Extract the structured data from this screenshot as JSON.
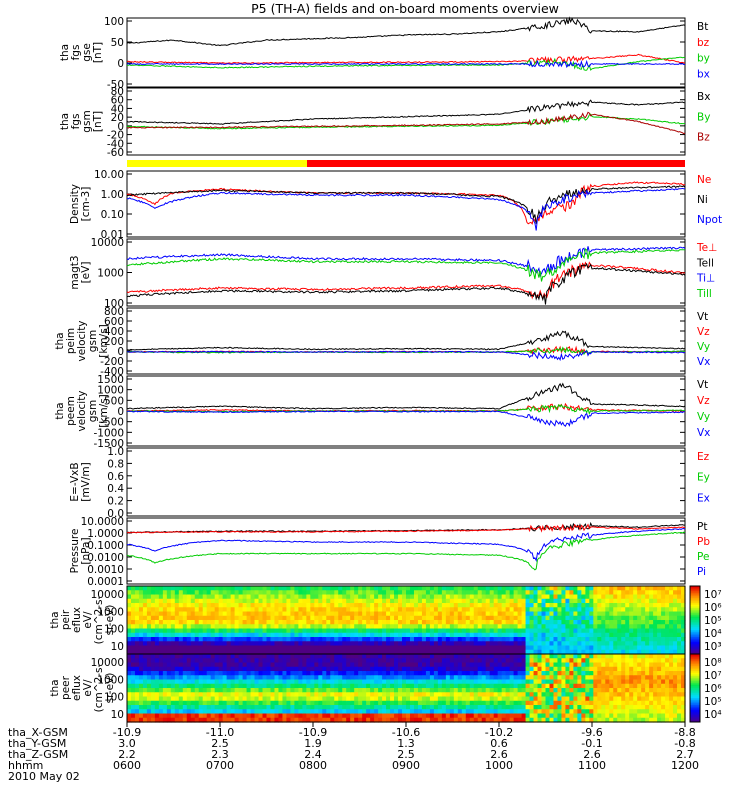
{
  "title": "P5 (TH-A) fields and on-board moments overview",
  "chart_data": [
    {
      "type": "line",
      "panel": "fgs_gse",
      "ylabel": [
        "tha",
        "fgs",
        "gse",
        "[nT]"
      ],
      "yticks": [
        "100",
        "50",
        "0",
        "-50"
      ],
      "ylim": [
        -50,
        100
      ],
      "series": [
        {
          "name": "Bt",
          "color": "#000000",
          "x": [
            6.0,
            6.5,
            7.0,
            7.5,
            8.0,
            8.5,
            9.0,
            9.5,
            10.0,
            10.4,
            10.8,
            11.0,
            11.5,
            12.0
          ],
          "y": [
            45,
            52,
            40,
            52,
            55,
            58,
            63,
            65,
            70,
            80,
            95,
            72,
            70,
            85
          ]
        },
        {
          "name": "bz",
          "color": "#ff0000",
          "x": [
            6.0,
            7.0,
            8.0,
            9.0,
            10.0,
            10.5,
            11.0,
            11.5,
            12.0
          ],
          "y": [
            5,
            2,
            3,
            4,
            5,
            8,
            12,
            20,
            2
          ]
        },
        {
          "name": "by",
          "color": "#00cc00",
          "x": [
            6.0,
            7.0,
            8.0,
            9.0,
            10.0,
            10.6,
            11.0,
            11.5,
            12.0
          ],
          "y": [
            -2,
            -8,
            -5,
            -3,
            -2,
            5,
            -10,
            5,
            15
          ]
        },
        {
          "name": "bx",
          "color": "#0000ff",
          "x": [
            6.0,
            12.0
          ],
          "y": [
            0,
            0
          ]
        }
      ]
    },
    {
      "type": "line",
      "panel": "fgs_gsm",
      "ylabel": [
        "tha",
        "fgs",
        "gsm",
        "[nT]"
      ],
      "yticks": [
        "80",
        "60",
        "40",
        "20",
        "0",
        "-20",
        "-40",
        "-60"
      ],
      "ylim": [
        -60,
        80
      ],
      "series": [
        {
          "name": "Bx",
          "color": "#000000",
          "x": [
            6.0,
            7.0,
            8.0,
            9.0,
            10.0,
            10.5,
            11.0,
            11.5,
            12.0
          ],
          "y": [
            10,
            5,
            15,
            20,
            25,
            40,
            50,
            45,
            50
          ]
        },
        {
          "name": "By",
          "color": "#00cc00",
          "x": [
            6.0,
            7.0,
            8.0,
            9.0,
            10.0,
            10.5,
            11.0,
            11.5,
            12.0
          ],
          "y": [
            0,
            -5,
            -2,
            0,
            2,
            10,
            20,
            15,
            5
          ]
        },
        {
          "name": "Bz",
          "color": "#aa0000",
          "x": [
            6.0,
            7.0,
            8.0,
            9.0,
            10.0,
            10.5,
            11.0,
            11.5,
            12.0
          ],
          "y": [
            -3,
            -2,
            0,
            2,
            5,
            10,
            25,
            10,
            -15
          ]
        }
      ]
    },
    {
      "type": "line",
      "panel": "density",
      "scale": "log",
      "ylabel": [
        "Density",
        "[cm-3]"
      ],
      "yticks": [
        "10.00",
        "1.00",
        "0.10",
        "0.01"
      ],
      "ylim": [
        0.01,
        10
      ],
      "series": [
        {
          "name": "Ne",
          "color": "#ff0000",
          "x": [
            6.0,
            6.3,
            6.5,
            7.0,
            7.5,
            8.0,
            9.0,
            10.0,
            10.3,
            10.5,
            10.8,
            11.0,
            11.5,
            12.0
          ],
          "y": [
            0.9,
            0.3,
            1.0,
            1.5,
            1.2,
            1.0,
            1.0,
            0.8,
            0.05,
            0.1,
            0.3,
            2.0,
            3.0,
            2.5
          ]
        },
        {
          "name": "Ni",
          "color": "#000000",
          "x": [
            6.0,
            7.0,
            8.0,
            9.0,
            10.0,
            10.4,
            11.0,
            12.0
          ],
          "y": [
            0.8,
            1.3,
            1.0,
            1.0,
            0.7,
            0.05,
            1.5,
            2.0
          ]
        },
        {
          "name": "Npot",
          "color": "#0000ff",
          "x": [
            6.0,
            6.3,
            7.0,
            8.0,
            9.0,
            10.0,
            10.4,
            11.0,
            12.0
          ],
          "y": [
            0.6,
            0.2,
            1.0,
            0.8,
            0.8,
            0.5,
            0.03,
            1.0,
            1.5
          ]
        }
      ]
    },
    {
      "type": "line",
      "panel": "temperature",
      "scale": "log",
      "ylabel": [
        "magt3",
        "[eV]"
      ],
      "yticks": [
        "10000",
        "1000",
        "100"
      ],
      "ylim": [
        60,
        12000
      ],
      "series": [
        {
          "name": "Te⊥",
          "color": "#ff0000",
          "x": [
            6.0,
            7.0,
            8.0,
            9.0,
            10.0,
            10.5,
            11.0,
            12.0
          ],
          "y": [
            180,
            250,
            220,
            250,
            300,
            130,
            1500,
            800
          ]
        },
        {
          "name": "Tell",
          "color": "#000000",
          "x": [
            6.0,
            7.0,
            8.0,
            9.0,
            10.0,
            10.5,
            11.0,
            12.0
          ],
          "y": [
            130,
            200,
            180,
            200,
            250,
            100,
            1200,
            700
          ]
        },
        {
          "name": "Ti⊥",
          "color": "#0000ff",
          "x": [
            6.0,
            7.0,
            8.0,
            9.0,
            10.0,
            10.5,
            11.0,
            12.0
          ],
          "y": [
            2500,
            3500,
            2500,
            2500,
            2200,
            800,
            5000,
            6000
          ]
        },
        {
          "name": "Till",
          "color": "#00cc00",
          "x": [
            6.0,
            7.0,
            8.0,
            9.0,
            10.0,
            10.5,
            11.0,
            12.0
          ],
          "y": [
            1500,
            2500,
            2000,
            2000,
            1800,
            500,
            4000,
            5000
          ]
        }
      ]
    },
    {
      "type": "line",
      "panel": "peim_velocity",
      "ylabel": [
        "tha",
        "peim",
        "velocity",
        "gsm",
        "[km/s]"
      ],
      "yticks": [
        "800",
        "600",
        "400",
        "200",
        "0",
        "-200",
        "-400"
      ],
      "ylim": [
        -400,
        800
      ],
      "series": [
        {
          "name": "Vt",
          "color": "#000000",
          "x": [
            6.0,
            7.0,
            8.0,
            9.0,
            10.0,
            10.4,
            10.7,
            11.0,
            12.0
          ],
          "y": [
            40,
            80,
            50,
            60,
            50,
            200,
            350,
            100,
            60
          ]
        },
        {
          "name": "Vz",
          "color": "#ff0000",
          "x": [
            6.0,
            7.0,
            8.0,
            9.0,
            10.0,
            10.7,
            11.0,
            12.0
          ],
          "y": [
            0,
            10,
            0,
            5,
            0,
            50,
            10,
            0
          ]
        },
        {
          "name": "Vy",
          "color": "#00cc00",
          "x": [
            6.0,
            7.0,
            8.0,
            9.0,
            10.0,
            10.7,
            11.0,
            12.0
          ],
          "y": [
            0,
            -10,
            0,
            -5,
            0,
            30,
            0,
            10
          ]
        },
        {
          "name": "Vx",
          "color": "#0000ff",
          "x": [
            6.0,
            7.0,
            8.0,
            9.0,
            10.0,
            10.7,
            11.0,
            12.0
          ],
          "y": [
            0,
            5,
            0,
            5,
            0,
            -100,
            0,
            -10
          ]
        }
      ]
    },
    {
      "type": "line",
      "panel": "peem_velocity",
      "ylabel": [
        "tha",
        "peem",
        "velocity",
        "gsm",
        "[km/s]"
      ],
      "yticks": [
        "1500",
        "1000",
        "500",
        "0",
        "-500",
        "-1000",
        "-1500"
      ],
      "ylim": [
        -1500,
        1500
      ],
      "series": [
        {
          "name": "Vt",
          "color": "#000000",
          "x": [
            6.0,
            7.0,
            8.0,
            9.0,
            10.0,
            10.4,
            10.7,
            11.0,
            12.0
          ],
          "y": [
            100,
            200,
            100,
            150,
            100,
            700,
            1100,
            300,
            200
          ]
        },
        {
          "name": "Vz",
          "color": "#ff0000",
          "x": [
            6.0,
            7.0,
            8.0,
            9.0,
            10.0,
            10.7,
            11.0,
            12.0
          ],
          "y": [
            0,
            50,
            0,
            20,
            0,
            200,
            50,
            0
          ]
        },
        {
          "name": "Vy",
          "color": "#00cc00",
          "x": [
            6.0,
            7.0,
            8.0,
            9.0,
            10.0,
            10.7,
            11.0,
            12.0
          ],
          "y": [
            0,
            -30,
            0,
            -10,
            0,
            150,
            0,
            30
          ]
        },
        {
          "name": "Vx",
          "color": "#0000ff",
          "x": [
            6.0,
            7.0,
            8.0,
            9.0,
            10.0,
            10.7,
            11.0,
            12.0
          ],
          "y": [
            -20,
            -50,
            -20,
            -30,
            -20,
            -600,
            -100,
            -50
          ]
        }
      ]
    },
    {
      "type": "line",
      "panel": "efield",
      "ylabel": [
        "E=-VxB",
        "[mV/m]"
      ],
      "yticks": [
        "1.0",
        "0.8",
        "0.6",
        "0.4",
        "0.2",
        "0.0"
      ],
      "ylim": [
        0,
        1
      ],
      "series": [
        {
          "name": "Ez",
          "color": "#ff0000",
          "x": [],
          "y": []
        },
        {
          "name": "Ey",
          "color": "#00cc00",
          "x": [],
          "y": []
        },
        {
          "name": "Ex",
          "color": "#0000ff",
          "x": [],
          "y": []
        }
      ]
    },
    {
      "type": "line",
      "panel": "pressure",
      "scale": "log",
      "ylabel": [
        "Pressure",
        "[nPa]"
      ],
      "yticks": [
        "10.0000",
        "1.0000",
        "0.1000",
        "0.0100",
        "0.0010",
        "0.0001"
      ],
      "ylim": [
        0.0001,
        10
      ],
      "series": [
        {
          "name": "Pt",
          "color": "#000000",
          "x": [
            6.0,
            7.0,
            8.0,
            9.0,
            10.0,
            10.5,
            11.0,
            11.5,
            12.0
          ],
          "y": [
            0.8,
            1.0,
            1.0,
            1.1,
            1.3,
            1.8,
            2.5,
            2.0,
            3.0
          ]
        },
        {
          "name": "Pb",
          "color": "#ff0000",
          "x": [
            6.0,
            7.0,
            8.0,
            9.0,
            10.0,
            10.5,
            11.0,
            11.5,
            12.0
          ],
          "y": [
            0.8,
            0.9,
            0.9,
            1.0,
            1.2,
            1.7,
            2.0,
            1.5,
            2.0
          ]
        },
        {
          "name": "Pe",
          "color": "#00cc00",
          "x": [
            6.0,
            6.3,
            7.0,
            8.0,
            9.0,
            10.0,
            10.4,
            11.0,
            11.5,
            12.0
          ],
          "y": [
            0.015,
            0.004,
            0.02,
            0.02,
            0.02,
            0.015,
            0.001,
            0.2,
            0.5,
            0.8
          ]
        },
        {
          "name": "Pi",
          "color": "#0000ff",
          "x": [
            6.0,
            6.3,
            7.0,
            8.0,
            9.0,
            10.0,
            10.4,
            11.0,
            11.5,
            12.0
          ],
          "y": [
            0.1,
            0.03,
            0.2,
            0.15,
            0.15,
            0.1,
            0.005,
            0.5,
            1.0,
            1.5
          ]
        }
      ]
    },
    {
      "type": "heatmap",
      "panel": "peir_eflux",
      "ylabel": [
        "tha",
        "peir",
        "eflux",
        "eV/",
        "(cm^2-s-",
        "sr-eV)"
      ],
      "yticks": [
        "10000",
        "1000",
        "100",
        "10"
      ],
      "colorbar_ticks": [
        "10^7",
        "10^6",
        "10^5",
        "10^4",
        "10^3"
      ],
      "colorbar_min_exp": 3,
      "colorbar_max_exp": 7
    },
    {
      "type": "heatmap",
      "panel": "peer_eflux",
      "ylabel": [
        "tha",
        "peer",
        "eflux",
        "eV/",
        "(cm^2-s-",
        "sr-eV)"
      ],
      "yticks": [
        "10000",
        "1000",
        "100",
        "10"
      ],
      "colorbar_ticks": [
        "10^8",
        "10^7",
        "10^6",
        "10^5",
        "10^4"
      ],
      "colorbar_min_exp": 4,
      "colorbar_max_exp": 8
    }
  ],
  "xaxis": {
    "xlim": [
      6,
      12
    ],
    "row_labels": [
      "tha_X-GSM",
      "tha_Y-GSM",
      "tha_Z-GSM",
      "hhmm",
      "2010 May 02"
    ],
    "columns": [
      {
        "x": 6,
        "vals": [
          "-10.9",
          "3.0",
          "2.2",
          "0600"
        ]
      },
      {
        "x": 7,
        "vals": [
          "-11.0",
          "2.5",
          "2.3",
          "0700"
        ]
      },
      {
        "x": 8,
        "vals": [
          "-10.9",
          "1.9",
          "2.4",
          "0800"
        ]
      },
      {
        "x": 9,
        "vals": [
          "-10.6",
          "1.3",
          "2.5",
          "0900"
        ]
      },
      {
        "x": 10,
        "vals": [
          "-10.2",
          "0.6",
          "2.6",
          "1000"
        ]
      },
      {
        "x": 11,
        "vals": [
          "-9.6",
          "-0.1",
          "2.6",
          "1100"
        ]
      },
      {
        "x": 12,
        "vals": [
          "-8.8",
          "-0.8",
          "2.7",
          "1200"
        ]
      }
    ]
  }
}
